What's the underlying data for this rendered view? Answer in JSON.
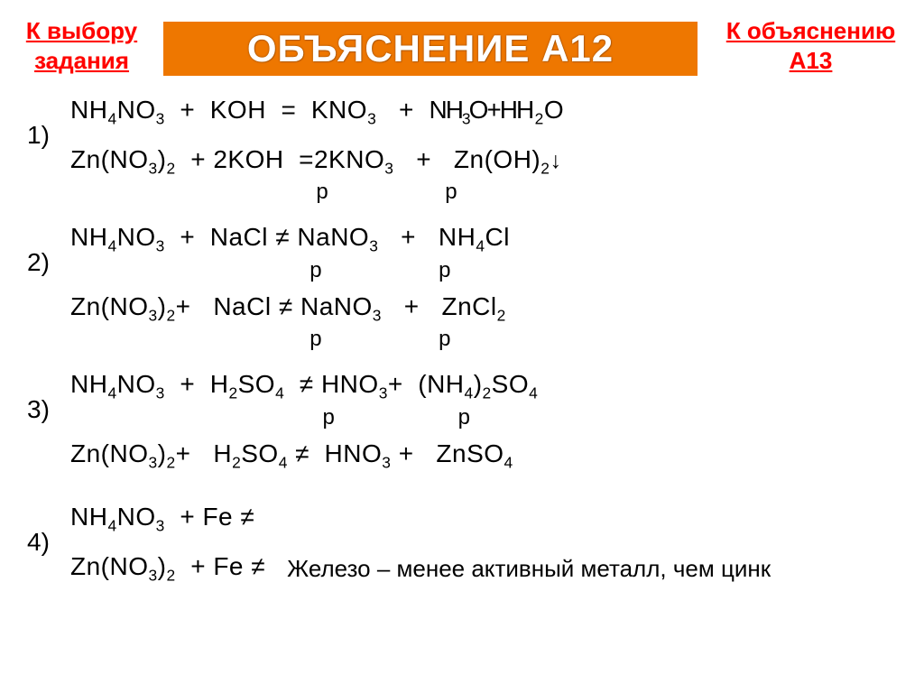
{
  "nav": {
    "left_line1": "К выбору",
    "left_line2": "задания",
    "right_line1": "К объяснению",
    "right_line2": "А13"
  },
  "title": "ОБЪЯСНЕНИЕ А12",
  "groups": {
    "g1": {
      "num": "1)",
      "eq1_html": "NH<span class='sub'>4</span>NO<span class='sub'>3</span>&nbsp;&nbsp;+&nbsp;&nbsp;KOH&nbsp;&nbsp;=&nbsp;&nbsp;KNO<span class='sub'>3</span>&nbsp;&nbsp;&nbsp;+&nbsp;&nbsp;<span class='overlap'>NH<span class='sub'>3</span>O+H</span>H<span class='sub'>2</span>O",
      "eq2_html": "Zn(NO<span class='sub'>3</span>)<span class='sub'>2</span>&nbsp;&nbsp;+ 2KOH&nbsp;&nbsp;=2KNO<span class='sub'>3</span>&nbsp;&nbsp;&nbsp;+&nbsp;&nbsp;&nbsp;Zn(OH)<span class='sub'>2</span><span class='arrow'>↓</span>",
      "plabels": "&nbsp;&nbsp;&nbsp;&nbsp;&nbsp;&nbsp;&nbsp;&nbsp;&nbsp;&nbsp;&nbsp;&nbsp;&nbsp;&nbsp;&nbsp;&nbsp;&nbsp;&nbsp;&nbsp;&nbsp;&nbsp;&nbsp;&nbsp;&nbsp;&nbsp;&nbsp;&nbsp;&nbsp;&nbsp;&nbsp;&nbsp;&nbsp;&nbsp;&nbsp;&nbsp;&nbsp;&nbsp;&nbsp;р&nbsp;&nbsp;&nbsp;&nbsp;&nbsp;&nbsp;&nbsp;&nbsp;&nbsp;&nbsp;&nbsp;&nbsp;&nbsp;&nbsp;&nbsp;&nbsp;&nbsp;&nbsp;р"
    },
    "g2": {
      "num": "2)",
      "eq1_html": "NH<span class='sub'>4</span>NO<span class='sub'>3</span>&nbsp;&nbsp;+&nbsp;&nbsp;NaCl&nbsp;≠&nbsp;NaNO<span class='sub'>3</span>&nbsp;&nbsp;&nbsp;+&nbsp;&nbsp;&nbsp;NH<span class='sub'>4</span>Cl",
      "plabels1": "&nbsp;&nbsp;&nbsp;&nbsp;&nbsp;&nbsp;&nbsp;&nbsp;&nbsp;&nbsp;&nbsp;&nbsp;&nbsp;&nbsp;&nbsp;&nbsp;&nbsp;&nbsp;&nbsp;&nbsp;&nbsp;&nbsp;&nbsp;&nbsp;&nbsp;&nbsp;&nbsp;&nbsp;&nbsp;&nbsp;&nbsp;&nbsp;&nbsp;&nbsp;&nbsp;&nbsp;&nbsp;р&nbsp;&nbsp;&nbsp;&nbsp;&nbsp;&nbsp;&nbsp;&nbsp;&nbsp;&nbsp;&nbsp;&nbsp;&nbsp;&nbsp;&nbsp;&nbsp;&nbsp;&nbsp;р",
      "eq2_html": "Zn(NO<span class='sub'>3</span>)<span class='sub'>2</span>+&nbsp;&nbsp;&nbsp;NaCl&nbsp;≠&nbsp;NaNO<span class='sub'>3</span>&nbsp;&nbsp;&nbsp;+&nbsp;&nbsp;&nbsp;ZnCl<span class='sub'>2</span>",
      "plabels2": "&nbsp;&nbsp;&nbsp;&nbsp;&nbsp;&nbsp;&nbsp;&nbsp;&nbsp;&nbsp;&nbsp;&nbsp;&nbsp;&nbsp;&nbsp;&nbsp;&nbsp;&nbsp;&nbsp;&nbsp;&nbsp;&nbsp;&nbsp;&nbsp;&nbsp;&nbsp;&nbsp;&nbsp;&nbsp;&nbsp;&nbsp;&nbsp;&nbsp;&nbsp;&nbsp;&nbsp;&nbsp;р&nbsp;&nbsp;&nbsp;&nbsp;&nbsp;&nbsp;&nbsp;&nbsp;&nbsp;&nbsp;&nbsp;&nbsp;&nbsp;&nbsp;&nbsp;&nbsp;&nbsp;&nbsp;р"
    },
    "g3": {
      "num": "3)",
      "eq1_html": "NH<span class='sub'>4</span>NO<span class='sub'>3</span>&nbsp;&nbsp;+&nbsp;&nbsp;H<span class='sub'>2</span>SO<span class='sub'>4</span>&nbsp;&nbsp;≠&nbsp;HNO<span class='sub'>3</span>+&nbsp;&nbsp;(NH<span class='sub'>4</span>)<span class='sub'>2</span>SO<span class='sub'>4</span>",
      "plabels1": "&nbsp;&nbsp;&nbsp;&nbsp;&nbsp;&nbsp;&nbsp;&nbsp;&nbsp;&nbsp;&nbsp;&nbsp;&nbsp;&nbsp;&nbsp;&nbsp;&nbsp;&nbsp;&nbsp;&nbsp;&nbsp;&nbsp;&nbsp;&nbsp;&nbsp;&nbsp;&nbsp;&nbsp;&nbsp;&nbsp;&nbsp;&nbsp;&nbsp;&nbsp;&nbsp;&nbsp;&nbsp;&nbsp;&nbsp;р&nbsp;&nbsp;&nbsp;&nbsp;&nbsp;&nbsp;&nbsp;&nbsp;&nbsp;&nbsp;&nbsp;&nbsp;&nbsp;&nbsp;&nbsp;&nbsp;&nbsp;&nbsp;&nbsp;р",
      "eq2_html": "Zn(NO<span class='sub'>3</span>)<span class='sub'>2</span>+&nbsp;&nbsp;&nbsp;H<span class='sub'>2</span>SO<span class='sub'>4</span>&nbsp;≠&nbsp;&nbsp;HNO<span class='sub'>3</span>&nbsp;+&nbsp;&nbsp;&nbsp;ZnSO<span class='sub'>4</span>"
    },
    "g4": {
      "num": "4)",
      "eq1_html": "NH<span class='sub'>4</span>NO<span class='sub'>3</span>&nbsp;&nbsp;+ Fe ≠",
      "eq2_html": "Zn(NO<span class='sub'>3</span>)<span class='sub'>2</span>&nbsp;&nbsp;+ Fe ≠",
      "note": "Железо – менее активный металл, чем цинк"
    }
  },
  "colors": {
    "title_bg": "#ee7700",
    "title_fg": "#ffffff",
    "link": "#ff0000",
    "text": "#000000",
    "bg": "#ffffff"
  }
}
